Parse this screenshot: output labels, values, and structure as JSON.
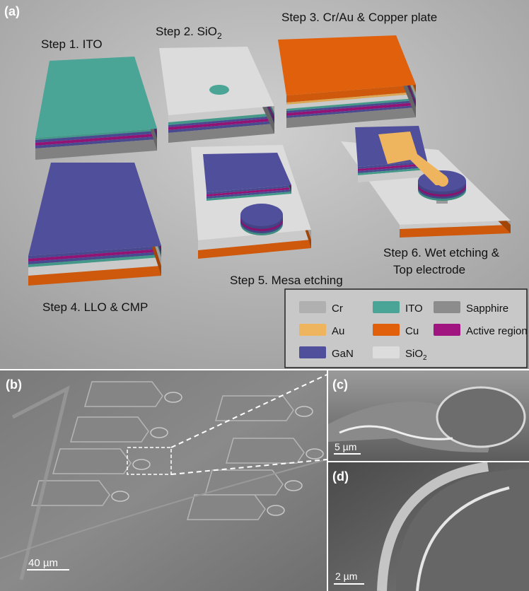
{
  "panel_a": {
    "label": "(a)",
    "steps": {
      "step1": "Step 1. ITO",
      "step2": "Step 2. SiO",
      "step2_sub": "2",
      "step3": "Step 3. Cr/Au & Copper plate",
      "step4": "Step 4. LLO & CMP",
      "step5": "Step 5. Mesa etching",
      "step6_line1": "Step 6. Wet etching &",
      "step6_line2": "Top electrode"
    },
    "legend": [
      {
        "label": "Cr",
        "color": "#b0b0b0"
      },
      {
        "label": "ITO",
        "color": "#4aa596"
      },
      {
        "label": "Sapphire",
        "color": "#8c8c8c"
      },
      {
        "label": "Au",
        "color": "#eeb45e"
      },
      {
        "label": "Cu",
        "color": "#e0600c"
      },
      {
        "label": "Active region",
        "color": "#a0157f"
      },
      {
        "label": "GaN",
        "color": "#4f4f9c"
      },
      {
        "label": "SiO",
        "sub": "2",
        "color": "#dcdcdc"
      }
    ]
  },
  "panel_b": {
    "label": "(b)",
    "scale_bar": "40 µm"
  },
  "panel_c": {
    "label": "(c)",
    "scale_bar": "5 µm"
  },
  "panel_d": {
    "label": "(d)",
    "scale_bar": "2 µm"
  }
}
